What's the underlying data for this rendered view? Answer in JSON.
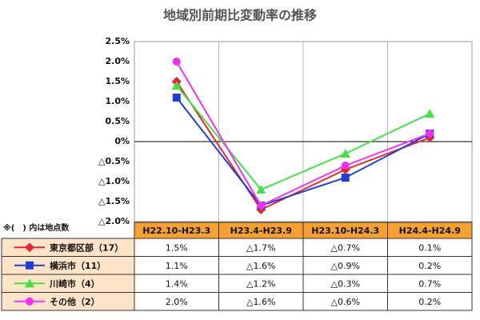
{
  "chart_data": {
    "type": "line",
    "title": "地域別前期比変動率の推移",
    "note": "※(　) 内は地点数",
    "categories": [
      "H22.10-H23.3",
      "H23.4-H23.9",
      "H23.10-H24.3",
      "H24.4-H24.9"
    ],
    "series": [
      {
        "name": "東京都区部（17）",
        "color": "#e8252a",
        "marker": "diamond",
        "values": [
          1.5,
          -1.7,
          -0.7,
          0.1
        ],
        "value_labels": [
          "1.5%",
          "△1.7%",
          "△0.7%",
          "0.1%"
        ]
      },
      {
        "name": "横浜市（11）",
        "color": "#1f3fd6",
        "marker": "square",
        "values": [
          1.1,
          -1.6,
          -0.9,
          0.2
        ],
        "value_labels": [
          "1.1%",
          "△1.6%",
          "△0.9%",
          "0.2%"
        ]
      },
      {
        "name": "川崎市（4）",
        "color": "#44e044",
        "marker": "triangle",
        "values": [
          1.4,
          -1.2,
          -0.3,
          0.7
        ],
        "value_labels": [
          "1.4%",
          "△1.2%",
          "△0.3%",
          "0.7%"
        ]
      },
      {
        "name": "その他（2）",
        "color": "#f030f0",
        "marker": "circle",
        "values": [
          2.0,
          -1.6,
          -0.6,
          0.2
        ],
        "value_labels": [
          "2.0%",
          "△1.6%",
          "△0.6%",
          "0.2%"
        ]
      }
    ],
    "ylim": [
      -2.0,
      2.5
    ],
    "yticks": [
      {
        "value": 2.5,
        "label": "2.5%"
      },
      {
        "value": 2.0,
        "label": "2.0%"
      },
      {
        "value": 1.5,
        "label": "1.5%"
      },
      {
        "value": 1.0,
        "label": "1.0%"
      },
      {
        "value": 0.5,
        "label": "0.5%"
      },
      {
        "value": 0,
        "label": "0%"
      },
      {
        "value": -0.5,
        "label": "△0.5%"
      },
      {
        "value": -1.0,
        "label": "△1.0%"
      },
      {
        "value": -1.5,
        "label": "△1.5%"
      },
      {
        "value": -2.0,
        "label": "△2.0%"
      }
    ],
    "grid": true
  }
}
